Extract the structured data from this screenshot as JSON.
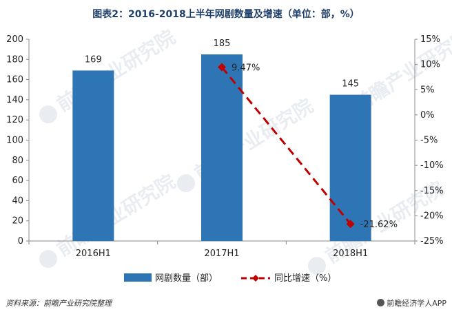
{
  "chart_data": {
    "type": "bar",
    "title": "图表2：2016-2018上半年网剧数量及增速（单位：部，%）",
    "categories": [
      "2016H1",
      "2017H1",
      "2018H1"
    ],
    "series": [
      {
        "name": "网剧数量（部）",
        "type": "bar",
        "axis": "left",
        "values": [
          169,
          185,
          145
        ],
        "color": "#2e75b6"
      },
      {
        "name": "同比增速（%）",
        "type": "line",
        "axis": "right",
        "values": [
          null,
          9.47,
          -21.62
        ],
        "color": "#c00000"
      }
    ],
    "bar_labels": [
      "169",
      "185",
      "145"
    ],
    "line_labels": [
      "",
      "9.47%",
      "-21.62%"
    ],
    "y_left": {
      "min": 0,
      "max": 200,
      "ticks": [
        0,
        20,
        40,
        60,
        80,
        100,
        120,
        140,
        160,
        180,
        200
      ]
    },
    "y_right": {
      "min": -25,
      "max": 15,
      "ticks": [
        "-25%",
        "-20%",
        "-15%",
        "-10%",
        "-5%",
        "0%",
        "5%",
        "10%",
        "15%"
      ]
    },
    "legend_position": "bottom",
    "grid": false
  },
  "footer": {
    "source": "资料来源：前瞻产业研究院整理",
    "brand": "前瞻经济学人APP"
  },
  "watermark": "前瞻产业研究院"
}
